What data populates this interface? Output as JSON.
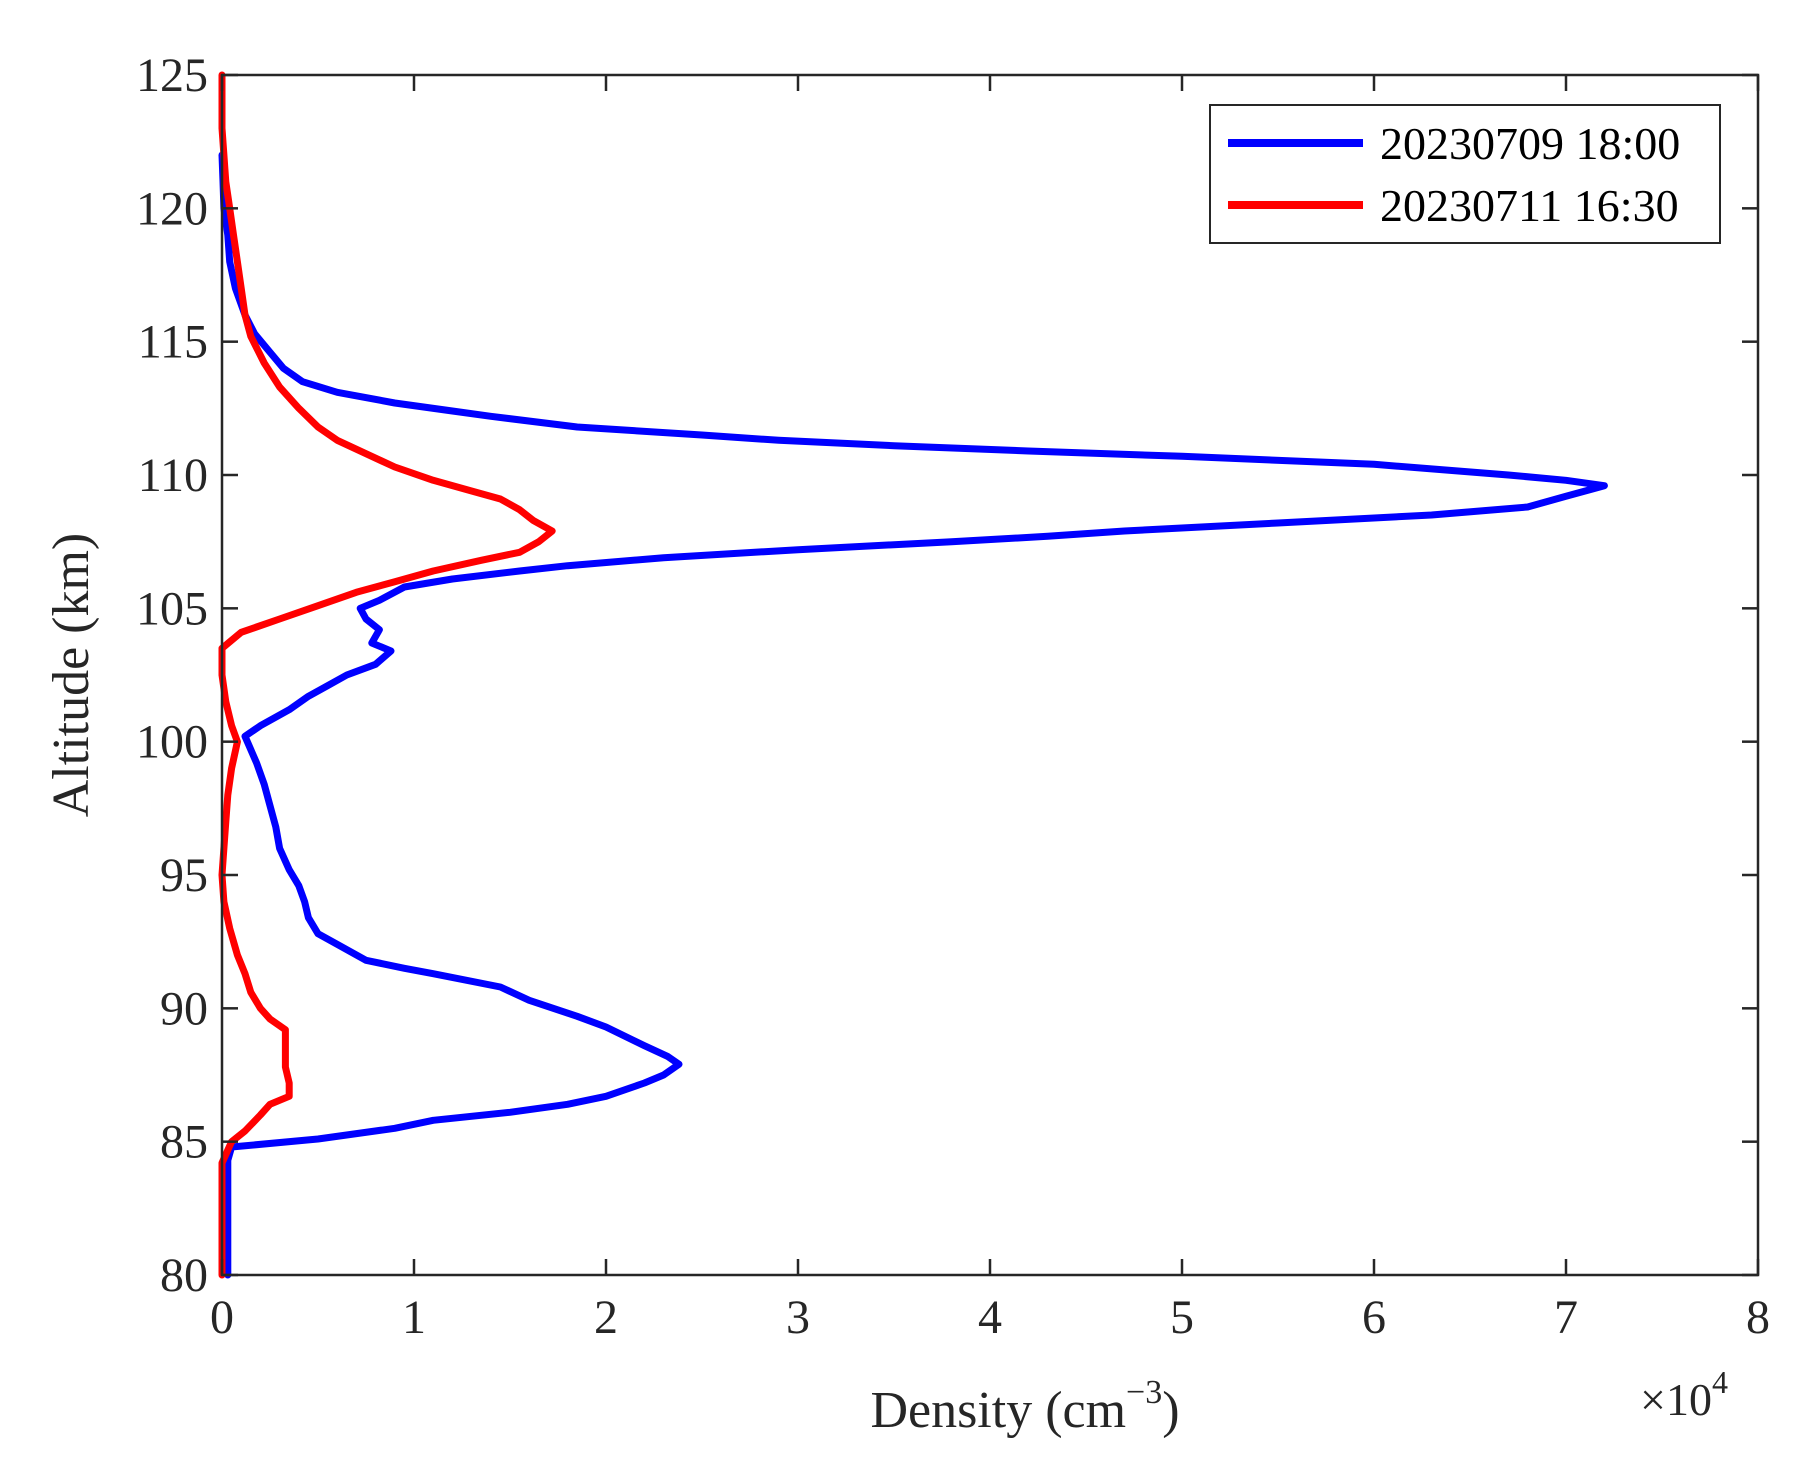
{
  "chart_data": {
    "type": "line",
    "orientation": "profile",
    "xlabel_prefix": "Density (cm",
    "xlabel_sup": "−3",
    "xlabel_suffix": ")",
    "ylabel": "Altitude (km)",
    "x_multiplier_base": "×10",
    "x_multiplier_exp": "4",
    "x_multiplier": 10000,
    "xlim": [
      0,
      8
    ],
    "ylim": [
      80,
      125
    ],
    "xticks": [
      "0",
      "1",
      "2",
      "3",
      "4",
      "5",
      "6",
      "7",
      "8"
    ],
    "yticks": [
      "80",
      "85",
      "90",
      "95",
      "100",
      "105",
      "110",
      "115",
      "120",
      "125"
    ],
    "grid": false,
    "box": true,
    "legend_position": "top-right",
    "series": [
      {
        "name": "20230709 18:00",
        "color": "#0000ff",
        "points": [
          [
            0.03,
            80
          ],
          [
            0.03,
            82
          ],
          [
            0.03,
            84.3
          ],
          [
            0.05,
            84.8
          ],
          [
            0.5,
            85.1
          ],
          [
            0.9,
            85.5
          ],
          [
            1.1,
            85.8
          ],
          [
            1.5,
            86.1
          ],
          [
            1.8,
            86.4
          ],
          [
            2.0,
            86.7
          ],
          [
            2.2,
            87.2
          ],
          [
            2.3,
            87.5
          ],
          [
            2.38,
            87.9
          ],
          [
            2.32,
            88.2
          ],
          [
            2.2,
            88.6
          ],
          [
            2.0,
            89.3
          ],
          [
            1.85,
            89.7
          ],
          [
            1.6,
            90.3
          ],
          [
            1.45,
            90.8
          ],
          [
            1.1,
            91.3
          ],
          [
            0.95,
            91.5
          ],
          [
            0.75,
            91.8
          ],
          [
            0.6,
            92.4
          ],
          [
            0.5,
            92.8
          ],
          [
            0.45,
            93.4
          ],
          [
            0.43,
            94.0
          ],
          [
            0.4,
            94.6
          ],
          [
            0.35,
            95.2
          ],
          [
            0.3,
            96.0
          ],
          [
            0.28,
            96.8
          ],
          [
            0.25,
            97.6
          ],
          [
            0.22,
            98.4
          ],
          [
            0.18,
            99.2
          ],
          [
            0.12,
            100.2
          ],
          [
            0.2,
            100.6
          ],
          [
            0.35,
            101.2
          ],
          [
            0.45,
            101.7
          ],
          [
            0.55,
            102.1
          ],
          [
            0.65,
            102.5
          ],
          [
            0.8,
            102.9
          ],
          [
            0.88,
            103.4
          ],
          [
            0.78,
            103.7
          ],
          [
            0.82,
            104.2
          ],
          [
            0.75,
            104.6
          ],
          [
            0.72,
            105.0
          ],
          [
            0.82,
            105.3
          ],
          [
            0.95,
            105.8
          ],
          [
            1.2,
            106.1
          ],
          [
            1.55,
            106.4
          ],
          [
            1.8,
            106.6
          ],
          [
            2.3,
            106.9
          ],
          [
            3.0,
            107.2
          ],
          [
            3.8,
            107.5
          ],
          [
            4.3,
            107.7
          ],
          [
            4.7,
            107.9
          ],
          [
            5.5,
            108.2
          ],
          [
            6.3,
            108.5
          ],
          [
            6.8,
            108.8
          ],
          [
            7.0,
            109.2
          ],
          [
            7.2,
            109.6
          ],
          [
            7.0,
            109.8
          ],
          [
            6.7,
            110.0
          ],
          [
            6.0,
            110.4
          ],
          [
            5.0,
            110.7
          ],
          [
            4.2,
            110.9
          ],
          [
            3.5,
            111.1
          ],
          [
            2.9,
            111.3
          ],
          [
            2.5,
            111.5
          ],
          [
            1.85,
            111.8
          ],
          [
            1.4,
            112.2
          ],
          [
            1.2,
            112.4
          ],
          [
            0.9,
            112.7
          ],
          [
            0.6,
            113.1
          ],
          [
            0.42,
            113.5
          ],
          [
            0.32,
            114.0
          ],
          [
            0.25,
            114.6
          ],
          [
            0.17,
            115.3
          ],
          [
            0.12,
            116.0
          ],
          [
            0.07,
            117.0
          ],
          [
            0.04,
            118.0
          ],
          [
            0.03,
            119.0
          ],
          [
            0.01,
            120.0
          ],
          [
            0.005,
            121.0
          ],
          [
            0.0,
            122.0
          ]
        ]
      },
      {
        "name": "20230711 16:30",
        "color": "#ff0000",
        "points": [
          [
            0.0,
            80
          ],
          [
            0.0,
            82
          ],
          [
            0.0,
            84.2
          ],
          [
            0.05,
            85.0
          ],
          [
            0.12,
            85.4
          ],
          [
            0.2,
            86.0
          ],
          [
            0.25,
            86.4
          ],
          [
            0.35,
            86.7
          ],
          [
            0.35,
            87.2
          ],
          [
            0.33,
            87.8
          ],
          [
            0.33,
            88.5
          ],
          [
            0.33,
            89.2
          ],
          [
            0.25,
            89.6
          ],
          [
            0.2,
            90.0
          ],
          [
            0.15,
            90.6
          ],
          [
            0.12,
            91.3
          ],
          [
            0.08,
            92.0
          ],
          [
            0.04,
            93.0
          ],
          [
            0.01,
            94.0
          ],
          [
            0.0,
            95.0
          ],
          [
            0.01,
            96.0
          ],
          [
            0.02,
            97.0
          ],
          [
            0.03,
            98.0
          ],
          [
            0.05,
            99.0
          ],
          [
            0.08,
            100.0
          ],
          [
            0.05,
            100.6
          ],
          [
            0.02,
            101.5
          ],
          [
            0.0,
            102.5
          ],
          [
            0.0,
            103.5
          ],
          [
            0.1,
            104.1
          ],
          [
            0.3,
            104.6
          ],
          [
            0.5,
            105.1
          ],
          [
            0.7,
            105.6
          ],
          [
            0.9,
            106.0
          ],
          [
            1.1,
            106.4
          ],
          [
            1.35,
            106.8
          ],
          [
            1.55,
            107.1
          ],
          [
            1.65,
            107.5
          ],
          [
            1.72,
            107.9
          ],
          [
            1.62,
            108.3
          ],
          [
            1.55,
            108.7
          ],
          [
            1.45,
            109.1
          ],
          [
            1.3,
            109.4
          ],
          [
            1.1,
            109.8
          ],
          [
            0.9,
            110.3
          ],
          [
            0.75,
            110.8
          ],
          [
            0.6,
            111.3
          ],
          [
            0.5,
            111.8
          ],
          [
            0.4,
            112.5
          ],
          [
            0.3,
            113.3
          ],
          [
            0.22,
            114.2
          ],
          [
            0.15,
            115.2
          ],
          [
            0.12,
            116.0
          ],
          [
            0.1,
            117.0
          ],
          [
            0.08,
            118.0
          ],
          [
            0.06,
            119.0
          ],
          [
            0.04,
            120.0
          ],
          [
            0.02,
            121.0
          ],
          [
            0.01,
            122.0
          ],
          [
            0.0,
            123.0
          ],
          [
            0.0,
            124.0
          ],
          [
            0.0,
            125.0
          ]
        ]
      }
    ]
  }
}
